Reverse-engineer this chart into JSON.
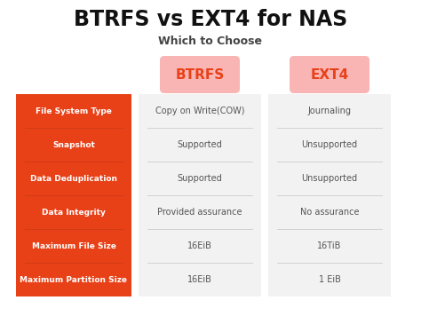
{
  "title": "BTRFS vs EXT4 for NAS",
  "subtitle": "Which to Choose",
  "rows": [
    "File System Type",
    "Snapshot",
    "Data Deduplication",
    "Data Integrity",
    "Maximum File Size",
    "Maximum Partition Size"
  ],
  "col1_header": "BTRFS",
  "col2_header": "EXT4",
  "col1_values": [
    "Copy on Write(COW)",
    "Supported",
    "Supported",
    "Provided assurance",
    "16EiB",
    "16EiB"
  ],
  "col2_values": [
    "Journaling",
    "Unsupported",
    "Unsupported",
    "No assurance",
    "16TiB",
    "1 EiB"
  ],
  "bg_color": "#ffffff",
  "title_color": "#111111",
  "subtitle_color": "#444444",
  "row_label_bg": "#e84118",
  "row_label_divider": "#cc3a15",
  "row_label_text": "#ffffff",
  "col_header_bg": "#f9b4b4",
  "col_header_text": "#e84118",
  "cell_bg": "#f2f2f2",
  "cell_text": "#555555",
  "divider_color": "#cccccc",
  "title_fontsize": 17,
  "subtitle_fontsize": 9,
  "row_label_fontsize": 6.5,
  "col_header_fontsize": 11,
  "cell_fontsize": 7
}
